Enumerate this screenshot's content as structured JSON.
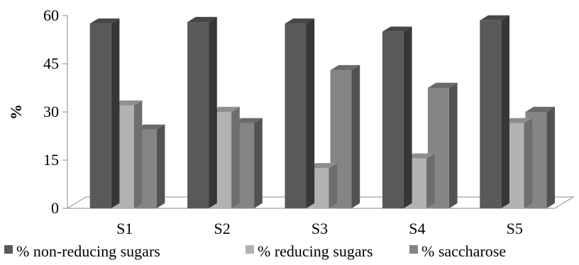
{
  "chart_data": {
    "type": "bar",
    "categories": [
      "S1",
      "S2",
      "S3",
      "S4",
      "S5"
    ],
    "series": [
      {
        "name": "% non-reducing sugars",
        "values": [
          57.5,
          58,
          57.5,
          55,
          58.5
        ],
        "color": "#595959"
      },
      {
        "name": "% reducing sugars",
        "values": [
          32,
          30,
          12.5,
          15.5,
          26.5
        ],
        "color": "#b2b2b2"
      },
      {
        "name": "% saccharose",
        "values": [
          24.5,
          26.5,
          43,
          37.5,
          30
        ],
        "color": "#858585"
      }
    ],
    "ylabel": "%",
    "xlabel": "",
    "title": "",
    "ylim": [
      0,
      60
    ],
    "yticks": [
      0,
      15,
      30,
      45,
      60
    ],
    "ytick_labels": [
      "0",
      "15",
      "30",
      "45",
      "60"
    ],
    "grid": false,
    "style": "3d-column",
    "legend_position": "bottom"
  }
}
